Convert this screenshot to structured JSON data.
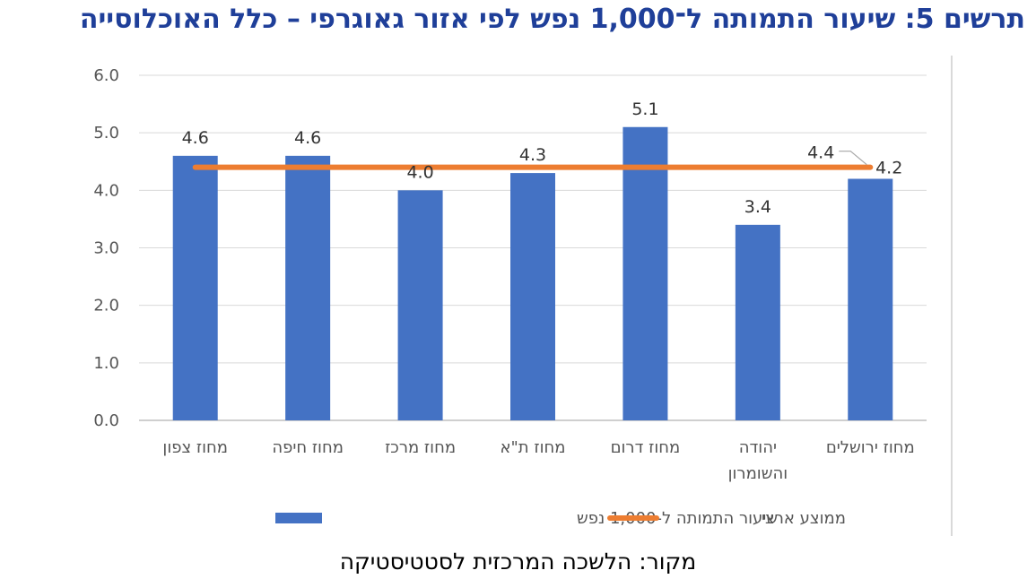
{
  "chart_data": {
    "type": "bar",
    "title": "תרשים 5: שיעור התמותה ל־1,000 נפש לפי אזור גאוגרפי – כלל האוכלוסייה",
    "source": "מקור: הלשכה המרכזית לסטטיסטיקה",
    "categories": [
      "מחוז צפון",
      "מחוז חיפה",
      "מחוז מרכז",
      "מחוז ת\"א",
      "מחוז דרום",
      "יהודה והשומרון",
      "מחוז ירושלים"
    ],
    "category_lines": [
      [
        "מחוז צפון"
      ],
      [
        "מחוז חיפה"
      ],
      [
        "מחוז מרכז"
      ],
      [
        "מחוז ת\"א"
      ],
      [
        "מחוז דרום"
      ],
      [
        "יהודה",
        "והשומרון"
      ],
      [
        "מחוז ירושלים"
      ]
    ],
    "series": [
      {
        "name": "שיעור התמותה ל-1,000 נפש",
        "type": "bar",
        "values": [
          4.6,
          4.6,
          4.0,
          4.3,
          5.1,
          3.4,
          4.2
        ],
        "labels": [
          "4.6",
          "4.6",
          "4.0",
          "4.3",
          "5.1",
          "3.4",
          "4.2"
        ],
        "color": "#4472C4"
      },
      {
        "name": "ממוצע ארצי",
        "type": "line",
        "value": 4.4,
        "label": "4.4",
        "color": "#ED7D31"
      }
    ],
    "yticks": [
      "0.0",
      "1.0",
      "2.0",
      "3.0",
      "4.0",
      "5.0",
      "6.0"
    ],
    "ylim": [
      0,
      6
    ],
    "grid": true,
    "legend": "bottom"
  }
}
